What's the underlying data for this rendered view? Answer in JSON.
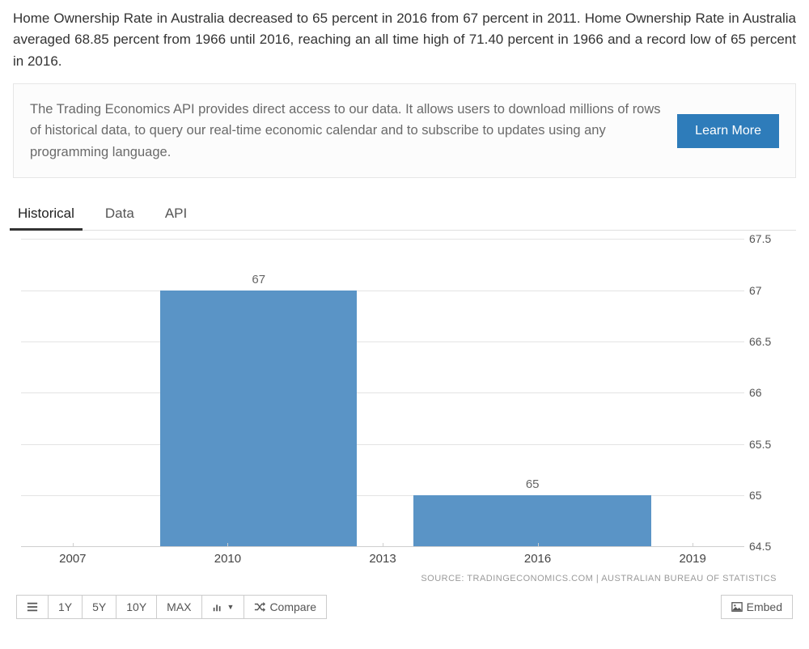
{
  "intro_text": "Home Ownership Rate in Australia decreased to 65 percent in 2016 from 67 percent in 2011. Home Ownership Rate in Australia averaged 68.85 percent from 1966 until 2016, reaching an all time high of 71.40 percent in 1966 and a record low of 65 percent in 2016.",
  "promo": {
    "text": "The Trading Economics API provides direct access to our data. It allows users to download millions of rows of historical data, to query our real-time economic calendar and to subscribe to updates using any programming language.",
    "button_label": "Learn More"
  },
  "tabs": {
    "items": [
      "Historical",
      "Data",
      "API"
    ],
    "active_index": 0
  },
  "chart": {
    "type": "bar",
    "ylim": [
      64.5,
      67.5
    ],
    "ytick_step": 0.5,
    "yticks": [
      64.5,
      65,
      65.5,
      66,
      66.5,
      67,
      67.5
    ],
    "x_ticks": [
      2007,
      2010,
      2013,
      2016,
      2019
    ],
    "x_range": [
      2006,
      2020
    ],
    "bars": [
      {
        "start": 2008.7,
        "end": 2012.5,
        "value": 67,
        "label": "67"
      },
      {
        "start": 2013.6,
        "end": 2018.2,
        "value": 65,
        "label": "65"
      }
    ],
    "bar_color": "#5a94c6",
    "grid_color": "#e4e4e4",
    "background_color": "#ffffff",
    "label_color": "#666666",
    "axis_label_color": "#444444"
  },
  "source_text": "SOURCE: TRADINGECONOMICS.COM | AUSTRALIAN BUREAU OF STATISTICS",
  "toolbar": {
    "range_buttons": [
      "1Y",
      "5Y",
      "10Y",
      "MAX"
    ],
    "compare_label": "Compare",
    "embed_label": "Embed"
  }
}
